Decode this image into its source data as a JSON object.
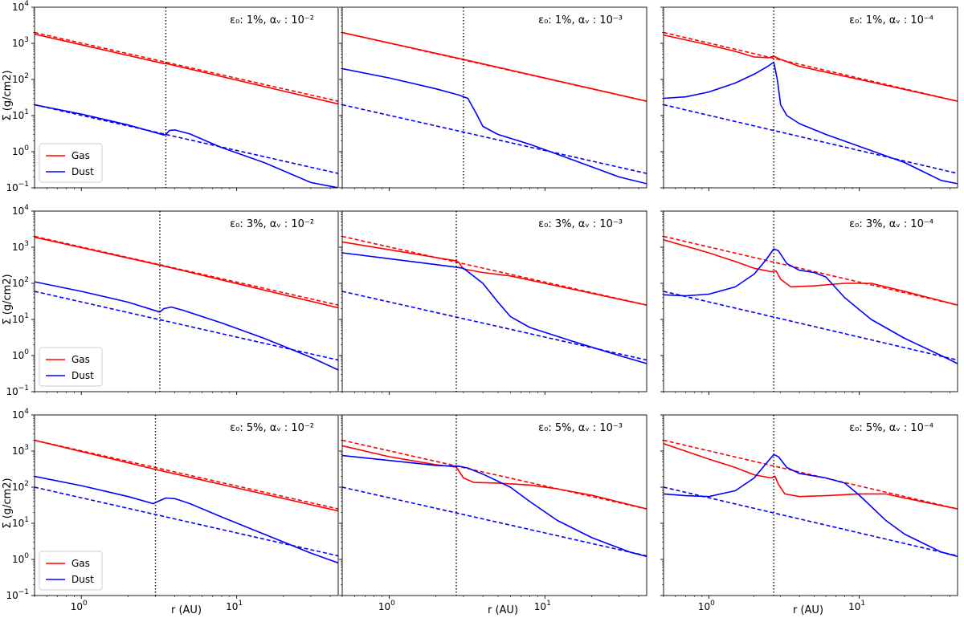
{
  "figure": {
    "ylabel": "Σ (g/cm2)",
    "xlabel": "r (AU)",
    "legend": {
      "gas_label": "Gas",
      "dust_label": "Dust",
      "placement": "lower-left"
    },
    "colors": {
      "gas": "#ff0000",
      "dust": "#0000ff",
      "marker": "#000000"
    }
  },
  "chart_data": [
    {
      "type": "line",
      "row": 0,
      "col": 0,
      "title": "ε₀: 1%, αᵥ : 10⁻²",
      "title_parts": {
        "eps": "1%",
        "alpha_exp": "−2"
      },
      "xscale": "log",
      "yscale": "log",
      "xlim": [
        0.5,
        45
      ],
      "ylim": [
        0.1,
        10000
      ],
      "marker_x": 3.5,
      "show_legend": true,
      "series": [
        {
          "name": "Gas",
          "style": "solid",
          "x": [
            0.5,
            3.4,
            3.6,
            45
          ],
          "y": [
            1800,
            275,
            270,
            21
          ]
        },
        {
          "name": "Gas initial",
          "style": "dashed",
          "x": [
            0.5,
            45
          ],
          "y": [
            2000,
            25
          ]
        },
        {
          "name": "Dust",
          "style": "solid",
          "x": [
            0.5,
            1,
            2,
            3.4,
            3.5,
            3.7,
            4,
            5,
            8,
            15,
            30,
            45
          ],
          "y": [
            20,
            11,
            5.5,
            2.9,
            3.0,
            3.9,
            4.0,
            3.1,
            1.3,
            0.5,
            0.14,
            0.1
          ]
        },
        {
          "name": "Dust initial",
          "style": "dashed",
          "x": [
            0.5,
            45
          ],
          "y": [
            20,
            0.25
          ]
        }
      ]
    },
    {
      "type": "line",
      "row": 0,
      "col": 1,
      "title": "ε₀: 1%, αᵥ : 10⁻³",
      "title_parts": {
        "eps": "1%",
        "alpha_exp": "−3"
      },
      "xscale": "log",
      "yscale": "log",
      "xlim": [
        0.5,
        45
      ],
      "ylim": [
        0.1,
        10000
      ],
      "marker_x": 3.0,
      "show_legend": false,
      "series": [
        {
          "name": "Gas",
          "style": "solid",
          "x": [
            0.5,
            3.0,
            45
          ],
          "y": [
            2000,
            360,
            25
          ]
        },
        {
          "name": "Gas initial",
          "style": "dashed",
          "x": [
            0.5,
            45
          ],
          "y": [
            2000,
            25
          ]
        },
        {
          "name": "Dust",
          "style": "solid",
          "x": [
            0.5,
            1,
            2,
            2.8,
            3.2,
            3.6,
            4,
            5,
            8,
            15,
            30,
            45
          ],
          "y": [
            200,
            110,
            55,
            37,
            30,
            12,
            5,
            3,
            1.6,
            0.6,
            0.2,
            0.13
          ]
        },
        {
          "name": "Dust initial",
          "style": "dashed",
          "x": [
            0.5,
            45
          ],
          "y": [
            20,
            0.25
          ]
        }
      ]
    },
    {
      "type": "line",
      "row": 0,
      "col": 2,
      "title": "ε₀: 1%, αᵥ : 10⁻⁴",
      "title_parts": {
        "eps": "1%",
        "alpha_exp": "−4"
      },
      "xscale": "log",
      "yscale": "log",
      "xlim": [
        0.5,
        45
      ],
      "ylim": [
        0.1,
        10000
      ],
      "marker_x": 2.7,
      "show_legend": false,
      "series": [
        {
          "name": "Gas",
          "style": "solid",
          "x": [
            0.5,
            1,
            1.5,
            2,
            2.5,
            2.7,
            2.9,
            4,
            10,
            45
          ],
          "y": [
            1700,
            900,
            600,
            420,
            400,
            440,
            380,
            230,
            100,
            25
          ]
        },
        {
          "name": "Gas initial",
          "style": "dashed",
          "x": [
            0.5,
            45
          ],
          "y": [
            2000,
            25
          ]
        },
        {
          "name": "Dust",
          "style": "solid",
          "x": [
            0.5,
            0.7,
            1,
            1.5,
            2,
            2.5,
            2.7,
            2.85,
            3.0,
            3.3,
            4,
            6,
            10,
            20,
            35,
            45
          ],
          "y": [
            30,
            33,
            45,
            80,
            140,
            240,
            300,
            100,
            20,
            10,
            6,
            3,
            1.4,
            0.5,
            0.16,
            0.13
          ]
        },
        {
          "name": "Dust initial",
          "style": "dashed",
          "x": [
            0.5,
            45
          ],
          "y": [
            20,
            0.25
          ]
        }
      ]
    },
    {
      "type": "line",
      "row": 1,
      "col": 0,
      "title": "ε₀: 3%, αᵥ : 10⁻²",
      "title_parts": {
        "eps": "3%",
        "alpha_exp": "−2"
      },
      "xscale": "log",
      "yscale": "log",
      "xlim": [
        0.5,
        45
      ],
      "ylim": [
        0.1,
        10000
      ],
      "marker_x": 3.2,
      "show_legend": true,
      "series": [
        {
          "name": "Gas",
          "style": "solid",
          "x": [
            0.5,
            3.2,
            45
          ],
          "y": [
            1900,
            320,
            21
          ]
        },
        {
          "name": "Gas initial",
          "style": "dashed",
          "x": [
            0.5,
            45
          ],
          "y": [
            2000,
            25
          ]
        },
        {
          "name": "Dust",
          "style": "solid",
          "x": [
            0.5,
            1,
            2,
            3.2,
            3.4,
            3.8,
            4.5,
            8,
            15,
            30,
            45
          ],
          "y": [
            110,
            60,
            30,
            16,
            20,
            22,
            18,
            8,
            3,
            0.9,
            0.4
          ]
        },
        {
          "name": "Dust initial",
          "style": "dashed",
          "x": [
            0.5,
            45
          ],
          "y": [
            60,
            0.75
          ]
        }
      ]
    },
    {
      "type": "line",
      "row": 1,
      "col": 1,
      "title": "ε₀: 3%, αᵥ : 10⁻³",
      "title_parts": {
        "eps": "3%",
        "alpha_exp": "−3"
      },
      "xscale": "log",
      "yscale": "log",
      "xlim": [
        0.5,
        45
      ],
      "ylim": [
        0.1,
        10000
      ],
      "marker_x": 2.7,
      "show_legend": false,
      "series": [
        {
          "name": "Gas",
          "style": "solid",
          "x": [
            0.5,
            2.7,
            2.8,
            3,
            4,
            6,
            10,
            45
          ],
          "y": [
            1400,
            420,
            380,
            250,
            200,
            160,
            100,
            25
          ]
        },
        {
          "name": "Gas initial",
          "style": "dashed",
          "x": [
            0.5,
            45
          ],
          "y": [
            2000,
            25
          ]
        },
        {
          "name": "Dust",
          "style": "solid",
          "x": [
            0.5,
            1,
            2,
            2.7,
            3,
            4,
            5,
            6,
            8,
            15,
            30,
            45
          ],
          "y": [
            700,
            480,
            330,
            280,
            260,
            100,
            30,
            12,
            6,
            2.5,
            1,
            0.6
          ]
        },
        {
          "name": "Dust initial",
          "style": "dashed",
          "x": [
            0.5,
            45
          ],
          "y": [
            60,
            0.75
          ]
        }
      ]
    },
    {
      "type": "line",
      "row": 1,
      "col": 2,
      "title": "ε₀: 3%, αᵥ : 10⁻⁴",
      "title_parts": {
        "eps": "3%",
        "alpha_exp": "−4"
      },
      "xscale": "log",
      "yscale": "log",
      "xlim": [
        0.5,
        45
      ],
      "ylim": [
        0.1,
        10000
      ],
      "marker_x": 2.7,
      "show_legend": false,
      "series": [
        {
          "name": "Gas",
          "style": "solid",
          "x": [
            0.5,
            1,
            1.5,
            2,
            2.6,
            2.8,
            3.0,
            3.5,
            5,
            8,
            12,
            20,
            45
          ],
          "y": [
            1600,
            700,
            400,
            260,
            210,
            220,
            130,
            80,
            85,
            100,
            100,
            60,
            25
          ]
        },
        {
          "name": "Gas initial",
          "style": "dashed",
          "x": [
            0.5,
            45
          ],
          "y": [
            2000,
            25
          ]
        },
        {
          "name": "Dust",
          "style": "solid",
          "x": [
            0.5,
            0.7,
            1,
            1.5,
            2,
            2.4,
            2.7,
            2.9,
            3.3,
            4,
            5,
            6,
            8,
            12,
            20,
            35,
            45
          ],
          "y": [
            48,
            45,
            50,
            80,
            180,
            450,
            900,
            800,
            350,
            230,
            200,
            150,
            40,
            10,
            3,
            1,
            0.6
          ]
        },
        {
          "name": "Dust initial",
          "style": "dashed",
          "x": [
            0.5,
            45
          ],
          "y": [
            60,
            0.75
          ]
        }
      ]
    },
    {
      "type": "line",
      "row": 2,
      "col": 0,
      "title": "ε₀: 5%, αᵥ : 10⁻²",
      "title_parts": {
        "eps": "5%",
        "alpha_exp": "−2"
      },
      "xscale": "log",
      "yscale": "log",
      "xlim": [
        0.5,
        45
      ],
      "ylim": [
        0.1,
        10000
      ],
      "marker_x": 3.0,
      "show_legend": true,
      "series": [
        {
          "name": "Gas",
          "style": "solid",
          "x": [
            0.5,
            3.0,
            45
          ],
          "y": [
            2000,
            310,
            22
          ]
        },
        {
          "name": "Gas initial",
          "style": "dashed",
          "x": [
            0.5,
            45
          ],
          "y": [
            2000,
            25
          ]
        },
        {
          "name": "Dust",
          "style": "solid",
          "x": [
            0.5,
            1,
            2,
            2.9,
            3.1,
            3.5,
            4,
            5,
            8,
            15,
            30,
            45
          ],
          "y": [
            200,
            110,
            55,
            35,
            40,
            50,
            48,
            35,
            15,
            5,
            1.5,
            0.8
          ]
        },
        {
          "name": "Dust initial",
          "style": "dashed",
          "x": [
            0.5,
            45
          ],
          "y": [
            100,
            1.25
          ]
        }
      ]
    },
    {
      "type": "line",
      "row": 2,
      "col": 1,
      "title": "ε₀: 5%, αᵥ : 10⁻³",
      "title_parts": {
        "eps": "5%",
        "alpha_exp": "−3"
      },
      "xscale": "log",
      "yscale": "log",
      "xlim": [
        0.5,
        45
      ],
      "ylim": [
        0.1,
        10000
      ],
      "marker_x": 2.7,
      "show_legend": false,
      "series": [
        {
          "name": "Gas",
          "style": "solid",
          "x": [
            0.5,
            1,
            2,
            2.7,
            3,
            3.5,
            5,
            8,
            12,
            20,
            45
          ],
          "y": [
            1400,
            700,
            420,
            360,
            180,
            135,
            130,
            115,
            90,
            60,
            25
          ]
        },
        {
          "name": "Gas initial",
          "style": "dashed",
          "x": [
            0.5,
            45
          ],
          "y": [
            2000,
            25
          ]
        },
        {
          "name": "Dust",
          "style": "solid",
          "x": [
            0.5,
            1,
            2,
            2.8,
            3.2,
            4,
            6,
            8,
            12,
            20,
            35,
            45
          ],
          "y": [
            750,
            550,
            400,
            380,
            340,
            230,
            100,
            40,
            12,
            4,
            1.6,
            1.2
          ]
        },
        {
          "name": "Dust initial",
          "style": "dashed",
          "x": [
            0.5,
            45
          ],
          "y": [
            100,
            1.25
          ]
        }
      ]
    },
    {
      "type": "line",
      "row": 2,
      "col": 2,
      "title": "ε₀: 5%, αᵥ : 10⁻⁴",
      "title_parts": {
        "eps": "5%",
        "alpha_exp": "−4"
      },
      "xscale": "log",
      "yscale": "log",
      "xlim": [
        0.5,
        45
      ],
      "ylim": [
        0.1,
        10000
      ],
      "marker_x": 2.7,
      "show_legend": false,
      "series": [
        {
          "name": "Gas",
          "style": "solid",
          "x": [
            0.5,
            1,
            1.5,
            2,
            2.6,
            2.75,
            2.9,
            3.2,
            4,
            6,
            10,
            15,
            20,
            45
          ],
          "y": [
            1600,
            600,
            350,
            220,
            180,
            200,
            120,
            65,
            55,
            58,
            65,
            65,
            50,
            25
          ]
        },
        {
          "name": "Gas initial",
          "style": "dashed",
          "x": [
            0.5,
            45
          ],
          "y": [
            2000,
            25
          ]
        },
        {
          "name": "Dust",
          "style": "solid",
          "x": [
            0.5,
            0.7,
            1,
            1.5,
            2,
            2.4,
            2.7,
            2.9,
            3.3,
            4,
            6,
            8,
            10,
            15,
            20,
            35,
            45
          ],
          "y": [
            65,
            58,
            55,
            80,
            180,
            450,
            800,
            700,
            350,
            240,
            180,
            130,
            60,
            12,
            5,
            1.6,
            1.2
          ]
        },
        {
          "name": "Dust initial",
          "style": "dashed",
          "x": [
            0.5,
            45
          ],
          "y": [
            100,
            1.25
          ]
        }
      ]
    }
  ]
}
